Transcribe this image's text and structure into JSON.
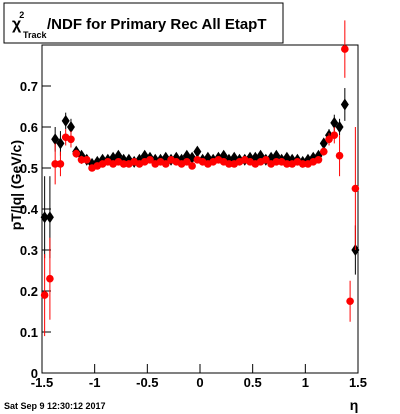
{
  "chart_data": {
    "type": "scatter",
    "title": {
      "symbol": "χ",
      "sup": "2",
      "sub": "Track",
      "text": "/NDF for Primary Rec All EtapT"
    },
    "ylabel": "pT/|q| (GeV/c)",
    "xlabel": "η",
    "footer": "Sat Sep  9 12:30:12 2017",
    "xlim": [
      -1.5,
      1.5
    ],
    "ylim": [
      0,
      0.8
    ],
    "xticks": [
      -1.5,
      -1,
      -0.5,
      0,
      0.5,
      1,
      1.5
    ],
    "yticks": [
      0,
      0.1,
      0.2,
      0.3,
      0.4,
      0.5,
      0.6,
      0.7
    ],
    "x": [
      -1.475,
      -1.425,
      -1.375,
      -1.325,
      -1.275,
      -1.225,
      -1.175,
      -1.125,
      -1.075,
      -1.025,
      -0.975,
      -0.925,
      -0.875,
      -0.825,
      -0.775,
      -0.725,
      -0.675,
      -0.625,
      -0.575,
      -0.525,
      -0.475,
      -0.425,
      -0.375,
      -0.325,
      -0.275,
      -0.225,
      -0.175,
      -0.125,
      -0.075,
      -0.025,
      0.025,
      0.075,
      0.125,
      0.175,
      0.225,
      0.275,
      0.325,
      0.375,
      0.425,
      0.475,
      0.525,
      0.575,
      0.625,
      0.675,
      0.725,
      0.775,
      0.825,
      0.875,
      0.925,
      0.975,
      1.025,
      1.075,
      1.125,
      1.175,
      1.225,
      1.275,
      1.325,
      1.375,
      1.425,
      1.475
    ],
    "series": [
      {
        "color": "#000000",
        "marker": "diamond",
        "values": [
          0.38,
          0.38,
          0.57,
          0.56,
          0.615,
          0.6,
          0.54,
          0.53,
          0.52,
          0.51,
          0.515,
          0.52,
          0.52,
          0.525,
          0.53,
          0.52,
          0.52,
          0.515,
          0.52,
          0.53,
          0.525,
          0.52,
          0.52,
          0.525,
          0.52,
          0.525,
          0.52,
          0.53,
          0.525,
          0.54,
          0.52,
          0.525,
          0.52,
          0.525,
          0.53,
          0.52,
          0.525,
          0.52,
          0.52,
          0.525,
          0.525,
          0.53,
          0.52,
          0.525,
          0.53,
          0.52,
          0.525,
          0.52,
          0.52,
          0.515,
          0.52,
          0.525,
          0.53,
          0.56,
          0.58,
          0.61,
          0.6,
          0.655,
          null,
          0.3
        ],
        "errors": [
          0.1,
          0.1,
          0.03,
          0.03,
          0.02,
          0.02,
          0.01,
          0.01,
          0.008,
          0.005,
          0.005,
          0.005,
          0.005,
          0.005,
          0.005,
          0.005,
          0.005,
          0.005,
          0.005,
          0.005,
          0.005,
          0.005,
          0.005,
          0.005,
          0.005,
          0.005,
          0.005,
          0.005,
          0.005,
          0.005,
          0.005,
          0.005,
          0.005,
          0.005,
          0.005,
          0.005,
          0.005,
          0.005,
          0.005,
          0.005,
          0.005,
          0.005,
          0.005,
          0.005,
          0.005,
          0.005,
          0.005,
          0.005,
          0.005,
          0.005,
          0.005,
          0.005,
          0.008,
          0.01,
          0.015,
          0.02,
          0.02,
          0.04,
          null,
          0.06
        ]
      },
      {
        "color": "#ff0000",
        "marker": "circle",
        "values": [
          0.19,
          0.23,
          0.51,
          0.51,
          0.575,
          0.57,
          0.535,
          0.52,
          0.52,
          0.5,
          0.505,
          0.51,
          0.515,
          0.51,
          0.515,
          0.51,
          0.51,
          0.515,
          0.51,
          0.515,
          0.52,
          0.51,
          0.515,
          0.51,
          0.52,
          0.515,
          0.51,
          0.515,
          0.505,
          0.52,
          0.515,
          0.51,
          0.515,
          0.52,
          0.515,
          0.51,
          0.51,
          0.515,
          0.52,
          0.515,
          0.51,
          0.515,
          0.52,
          0.51,
          0.515,
          0.515,
          0.51,
          0.51,
          0.515,
          0.51,
          0.51,
          0.515,
          0.52,
          0.54,
          0.57,
          0.58,
          0.53,
          0.79,
          0.175,
          0.45
        ],
        "errors": [
          0.1,
          0.1,
          0.05,
          0.03,
          0.02,
          0.02,
          0.01,
          0.01,
          0.008,
          0.005,
          0.005,
          0.005,
          0.005,
          0.005,
          0.005,
          0.005,
          0.005,
          0.005,
          0.005,
          0.005,
          0.005,
          0.005,
          0.005,
          0.005,
          0.005,
          0.005,
          0.005,
          0.005,
          0.005,
          0.005,
          0.005,
          0.005,
          0.005,
          0.005,
          0.005,
          0.005,
          0.005,
          0.005,
          0.005,
          0.005,
          0.005,
          0.005,
          0.005,
          0.005,
          0.005,
          0.005,
          0.005,
          0.005,
          0.005,
          0.005,
          0.005,
          0.005,
          0.008,
          0.01,
          0.015,
          0.02,
          0.05,
          0.07,
          0.05,
          0.15
        ]
      }
    ]
  }
}
